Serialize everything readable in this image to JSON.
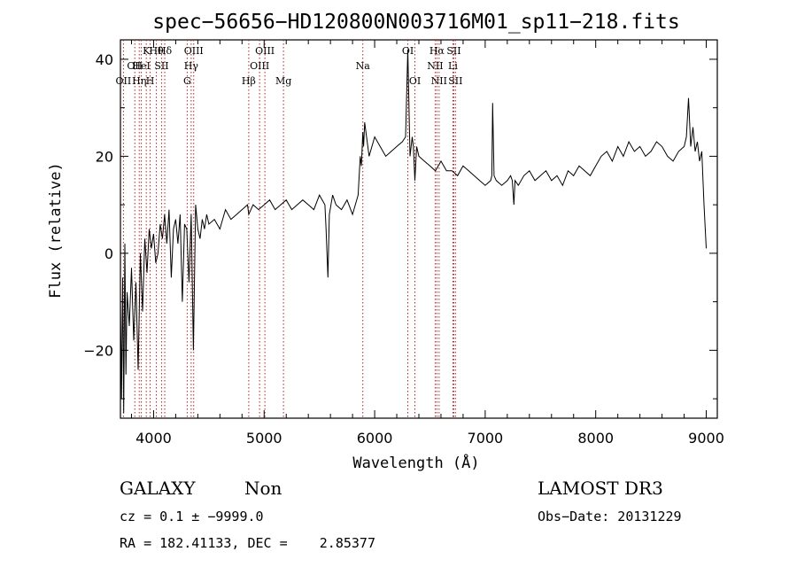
{
  "chart_data": {
    "type": "line",
    "title": "spec−56656−HD120800N003716M01_sp11−218.fits",
    "xlabel": "Wavelength (Å)",
    "ylabel": "Flux (relative)",
    "xlim": [
      3700,
      9100
    ],
    "ylim": [
      -34,
      44
    ],
    "xticks": [
      4000,
      5000,
      6000,
      7000,
      8000,
      9000
    ],
    "xtick_labels": [
      "4000",
      "5000",
      "6000",
      "7000",
      "8000",
      "9000"
    ],
    "yticks": [
      -20,
      0,
      20,
      40
    ],
    "ytick_labels": [
      "−20",
      "0",
      "20",
      "40"
    ],
    "grid": false,
    "series": [
      {
        "x": [
          3700,
          3710,
          3720,
          3730,
          3740,
          3750,
          3760,
          3780,
          3800,
          3820,
          3840,
          3860,
          3880,
          3900,
          3920,
          3940,
          3960,
          3980,
          4000,
          4020,
          4040,
          4060,
          4080,
          4100,
          4120,
          4140,
          4160,
          4180,
          4200,
          4220,
          4240,
          4260,
          4280,
          4300,
          4320,
          4340,
          4360,
          4380,
          4400,
          4420,
          4440,
          4460,
          4480,
          4500,
          4550,
          4600,
          4650,
          4700,
          4750,
          4800,
          4850,
          4861,
          4900,
          4950,
          5000,
          5050,
          5100,
          5150,
          5200,
          5250,
          5300,
          5350,
          5400,
          5450,
          5500,
          5550,
          5560,
          5577,
          5590,
          5620,
          5650,
          5700,
          5750,
          5800,
          5850,
          5870,
          5880,
          5893,
          5900,
          5910,
          5950,
          6000,
          6050,
          6100,
          6150,
          6200,
          6250,
          6280,
          6300,
          6320,
          6340,
          6350,
          6364,
          6380,
          6400,
          6450,
          6500,
          6550,
          6600,
          6650,
          6700,
          6750,
          6800,
          6850,
          6900,
          6950,
          7000,
          7050,
          7060,
          7067,
          7080,
          7100,
          7150,
          7200,
          7230,
          7245,
          7260,
          7270,
          7300,
          7350,
          7400,
          7450,
          7500,
          7550,
          7600,
          7650,
          7700,
          7750,
          7800,
          7850,
          7900,
          7950,
          8000,
          8050,
          8100,
          8150,
          8200,
          8250,
          8300,
          8350,
          8400,
          8450,
          8500,
          8550,
          8600,
          8650,
          8700,
          8750,
          8800,
          8820,
          8840,
          8860,
          8880,
          8900,
          8920,
          8940,
          8960,
          8980,
          9000
        ],
        "y": [
          -10,
          -30,
          -5,
          -33,
          2,
          -25,
          -8,
          -15,
          -3,
          -18,
          -6,
          -24,
          0,
          -12,
          3,
          -4,
          5,
          1,
          4,
          -2,
          0,
          6,
          3,
          8,
          2,
          9,
          -5,
          5,
          7,
          2,
          8,
          -10,
          6,
          5,
          -6,
          8,
          -20,
          10,
          5,
          3,
          7,
          5,
          8,
          6,
          7,
          5,
          9,
          7,
          8,
          9,
          10,
          8,
          10,
          9,
          10,
          11,
          9,
          10,
          11,
          9,
          10,
          11,
          10,
          9,
          12,
          10,
          5,
          -5,
          8,
          12,
          10,
          9,
          11,
          8,
          12,
          20,
          18,
          25,
          22,
          27,
          20,
          24,
          22,
          20,
          21,
          22,
          23,
          24,
          42,
          20,
          24,
          22,
          15,
          22,
          20,
          19,
          18,
          17,
          19,
          17,
          17,
          16,
          18,
          17,
          16,
          15,
          14,
          15,
          16,
          31,
          16,
          15,
          14,
          15,
          16,
          15,
          10,
          15,
          14,
          16,
          17,
          15,
          16,
          17,
          15,
          16,
          14,
          17,
          16,
          18,
          17,
          16,
          18,
          20,
          21,
          19,
          22,
          20,
          23,
          21,
          22,
          20,
          21,
          23,
          22,
          20,
          19,
          21,
          22,
          24,
          32,
          22,
          26,
          21,
          23,
          19,
          21,
          10,
          1
        ]
      }
    ],
    "line_marks": [
      {
        "x": 3727,
        "label": "OII",
        "row": 2
      },
      {
        "x": 3830,
        "label": "OII",
        "row": 1
      },
      {
        "x": 3870,
        "label": "Hη",
        "row": 2
      },
      {
        "x": 3889,
        "label": "HeI",
        "row": 1
      },
      {
        "x": 3934,
        "label": "K",
        "row": 0
      },
      {
        "x": 3969,
        "label": "H",
        "row": 2
      },
      {
        "x": 4025,
        "label": "Hθ",
        "row": 0
      },
      {
        "x": 4101,
        "label": "Hδ",
        "row": 0
      },
      {
        "x": 4072,
        "label": "SII",
        "row": 1
      },
      {
        "x": 4304,
        "label": "G",
        "row": 2
      },
      {
        "x": 4340,
        "label": "Hγ",
        "row": 1
      },
      {
        "x": 4363,
        "label": "OIII",
        "row": 0
      },
      {
        "x": 4861,
        "label": "Hβ",
        "row": 2
      },
      {
        "x": 4959,
        "label": "OIII",
        "row": 1
      },
      {
        "x": 5007,
        "label": "OIII",
        "row": 0
      },
      {
        "x": 5175,
        "label": "Mg",
        "row": 2
      },
      {
        "x": 5893,
        "label": "Na",
        "row": 1
      },
      {
        "x": 6300,
        "label": "OI",
        "row": 0
      },
      {
        "x": 6364,
        "label": "OI",
        "row": 2
      },
      {
        "x": 6548,
        "label": "NII",
        "row": 1
      },
      {
        "x": 6563,
        "label": "Hα",
        "row": 0
      },
      {
        "x": 6583,
        "label": "NII",
        "row": 2
      },
      {
        "x": 6708,
        "label": "Li",
        "row": 1
      },
      {
        "x": 6716,
        "label": "SII",
        "row": 0
      },
      {
        "x": 6731,
        "label": "SII",
        "row": 2
      }
    ]
  },
  "info": {
    "class": "GALAXY",
    "subclass": "Non",
    "survey": "LAMOST DR3",
    "cz": "cz = 0.1 ± −9999.0",
    "obs_date": "Obs−Date: 20131229",
    "radec": "RA = 182.41133, DEC =    2.85377"
  }
}
